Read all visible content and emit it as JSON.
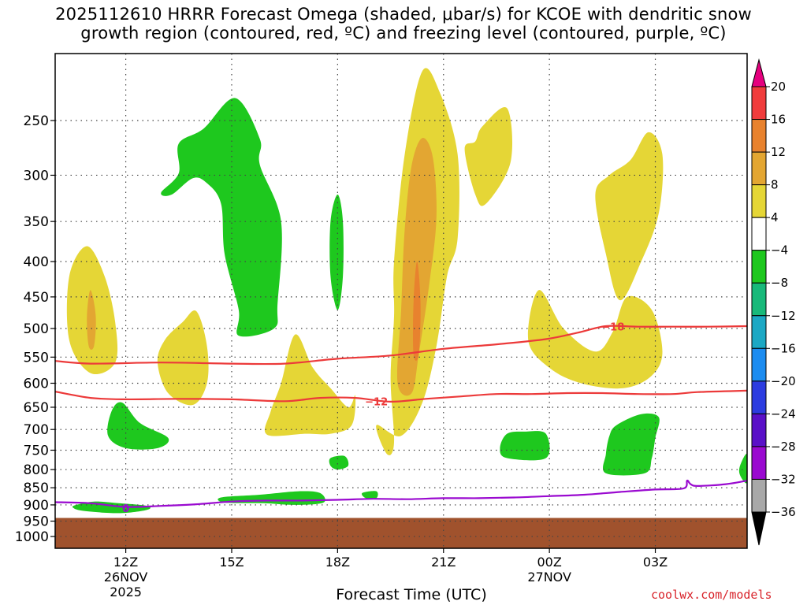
{
  "title": {
    "line1": "2025112610 HRRR Forecast Omega (shaded, μbar/s) for KCOE with dendritic snow",
    "line2": "growth region (contoured, red, ºC) and freezing level (contoured, purple, ºC)"
  },
  "watermark": "coolwx.com/models",
  "chart_data": {
    "type": "time-height cross section (filled contour)",
    "title": "2025112610 HRRR Forecast Omega (shaded, μbar/s) for KCOE with dendritic snow growth region (contoured, red, ºC) and freezing level (contoured, purple, ºC)",
    "xlabel": "Forecast Time (UTC)",
    "ylabel": "",
    "x_range_hours_utc_nov26": [
      10,
      29.6
    ],
    "y_range_hpa": [
      200,
      1040
    ],
    "y_scale": "log (pressure, decreasing upward)",
    "grid": true,
    "x_ticks": [
      {
        "hour": 12,
        "label": "12Z",
        "sub1": "26NOV",
        "sub2": "2025"
      },
      {
        "hour": 15,
        "label": "15Z",
        "sub1": "",
        "sub2": ""
      },
      {
        "hour": 18,
        "label": "18Z",
        "sub1": "",
        "sub2": ""
      },
      {
        "hour": 21,
        "label": "21Z",
        "sub1": "",
        "sub2": ""
      },
      {
        "hour": 24,
        "label": "00Z",
        "sub1": "27NOV",
        "sub2": ""
      },
      {
        "hour": 27,
        "label": "03Z",
        "sub1": "",
        "sub2": ""
      }
    ],
    "y_ticks": [
      250,
      300,
      350,
      400,
      450,
      500,
      550,
      600,
      650,
      700,
      750,
      800,
      850,
      900,
      950,
      1000
    ],
    "colorbar": {
      "levels": [
        "20",
        "16",
        "12",
        "8",
        "4",
        "−4",
        "−8",
        "−12",
        "−16",
        "−20",
        "−24",
        "−28",
        "−32",
        "−36"
      ],
      "colors": [
        "#e5007e",
        "#f03c3c",
        "#e8822e",
        "#e3a632",
        "#e5d636",
        "#ffffff",
        "#1ec81e",
        "#18b97a",
        "#1ca8c4",
        "#1c8cf0",
        "#2c3ce0",
        "#5a10c8",
        "#9a0ad0",
        "#a8a8a8",
        "#000000"
      ]
    },
    "terrain": {
      "top_hpa": 940,
      "color": "#a0522d"
    },
    "omega_regions": [
      {
        "level": "4 to 8",
        "color": "#e5d636",
        "points": [
          [
            10.9,
            380
          ],
          [
            11.4,
            420
          ],
          [
            11.7,
            490
          ],
          [
            11.7,
            560
          ],
          [
            11.0,
            580
          ],
          [
            10.4,
            520
          ],
          [
            10.4,
            420
          ]
        ]
      },
      {
        "level": "4 to 8",
        "color": "#e5d636",
        "points": [
          [
            14.0,
            472
          ],
          [
            14.3,
            530
          ],
          [
            14.3,
            600
          ],
          [
            13.9,
            645
          ],
          [
            13.2,
            620
          ],
          [
            12.9,
            560
          ],
          [
            13.1,
            520
          ],
          [
            13.6,
            490
          ]
        ]
      },
      {
        "level": "4 to 8",
        "color": "#e5d636",
        "points": [
          [
            16.8,
            510
          ],
          [
            17.3,
            570
          ],
          [
            17.8,
            610
          ],
          [
            18.3,
            650
          ],
          [
            18.5,
            625
          ],
          [
            18.4,
            690
          ],
          [
            17.8,
            710
          ],
          [
            17.1,
            710
          ],
          [
            16.0,
            712
          ],
          [
            16.1,
            660
          ],
          [
            16.4,
            600
          ]
        ]
      },
      {
        "level": "4 to 8",
        "color": "#e5d636",
        "points": [
          [
            19.1,
            690
          ],
          [
            19.4,
            760
          ],
          [
            19.6,
            730
          ],
          [
            19.5,
            590
          ],
          [
            19.6,
            480
          ],
          [
            19.6,
            400
          ],
          [
            19.9,
            280
          ],
          [
            20.4,
            212
          ],
          [
            20.9,
            228
          ],
          [
            21.4,
            280
          ],
          [
            21.4,
            370
          ],
          [
            21.1,
            420
          ],
          [
            20.8,
            530
          ],
          [
            20.4,
            640
          ],
          [
            19.8,
            715
          ]
        ]
      },
      {
        "level": "4 to 8",
        "color": "#e5d636",
        "points": [
          [
            21.9,
            268
          ],
          [
            22.1,
            255
          ],
          [
            22.8,
            240
          ],
          [
            22.9,
            287
          ],
          [
            22.2,
            330
          ],
          [
            21.9,
            320
          ],
          [
            21.6,
            275
          ]
        ]
      },
      {
        "level": "4 to 8",
        "color": "#e5d636",
        "points": [
          [
            23.7,
            440
          ],
          [
            24.4,
            500
          ],
          [
            25.3,
            540
          ],
          [
            25.8,
            505
          ],
          [
            26.2,
            450
          ],
          [
            26.9,
            470
          ],
          [
            27.2,
            540
          ],
          [
            26.9,
            585
          ],
          [
            26.1,
            610
          ],
          [
            24.9,
            600
          ],
          [
            24.0,
            570
          ],
          [
            23.4,
            520
          ]
        ]
      },
      {
        "level": "4 to 8",
        "color": "#e5d636",
        "points": [
          [
            26.3,
            285
          ],
          [
            26.8,
            260
          ],
          [
            27.2,
            280
          ],
          [
            27.1,
            340
          ],
          [
            26.6,
            400
          ],
          [
            26.0,
            455
          ],
          [
            25.6,
            390
          ],
          [
            25.3,
            320
          ],
          [
            25.7,
            300
          ]
        ]
      },
      {
        "level": "8 to 12",
        "color": "#e3a632",
        "points": [
          [
            20.4,
            265
          ],
          [
            20.7,
            283
          ],
          [
            20.8,
            345
          ],
          [
            20.6,
            430
          ],
          [
            20.3,
            545
          ],
          [
            20.1,
            620
          ],
          [
            19.7,
            600
          ],
          [
            19.8,
            470
          ],
          [
            19.9,
            360
          ],
          [
            20.1,
            290
          ]
        ]
      },
      {
        "level": "8 to 12",
        "color": "#e3a632",
        "points": [
          [
            11.0,
            440
          ],
          [
            11.15,
            480
          ],
          [
            11.1,
            530
          ],
          [
            10.95,
            530
          ],
          [
            10.9,
            480
          ]
        ]
      },
      {
        "level": "12 to 16",
        "color": "#e8822e",
        "points": [
          [
            20.25,
            400
          ],
          [
            20.35,
            460
          ],
          [
            20.3,
            545
          ],
          [
            20.15,
            545
          ],
          [
            20.15,
            460
          ]
        ]
      },
      {
        "level": "-4 to -8",
        "color": "#1ec81e",
        "points": [
          [
            13.0,
            318
          ],
          [
            13.5,
            298
          ],
          [
            13.5,
            270
          ],
          [
            14.2,
            257
          ],
          [
            15.1,
            232
          ],
          [
            15.8,
            266
          ],
          [
            15.8,
            290
          ],
          [
            16.4,
            350
          ],
          [
            16.3,
            460
          ],
          [
            16.2,
            500
          ],
          [
            15.2,
            512
          ],
          [
            15.2,
            470
          ],
          [
            14.8,
            390
          ],
          [
            14.7,
            330
          ],
          [
            14.3,
            308
          ],
          [
            13.9,
            303
          ],
          [
            13.3,
            320
          ]
        ]
      },
      {
        "level": "-4 to -8",
        "color": "#1ec81e",
        "points": [
          [
            18.0,
            320
          ],
          [
            18.15,
            350
          ],
          [
            18.15,
            420
          ],
          [
            18.0,
            470
          ],
          [
            17.8,
            420
          ],
          [
            17.8,
            350
          ]
        ]
      },
      {
        "level": "-4 to -8",
        "color": "#1ec81e",
        "points": [
          [
            11.6,
            658
          ],
          [
            11.9,
            640
          ],
          [
            12.4,
            685
          ],
          [
            13.2,
            720
          ],
          [
            12.9,
            745
          ],
          [
            12.0,
            745
          ],
          [
            11.5,
            715
          ]
        ]
      },
      {
        "level": "-4 to -8",
        "color": "#1ec81e",
        "points": [
          [
            22.8,
            710
          ],
          [
            23.3,
            705
          ],
          [
            23.9,
            710
          ],
          [
            23.9,
            770
          ],
          [
            22.8,
            770
          ],
          [
            22.6,
            745
          ]
        ]
      },
      {
        "level": "-4 to -8",
        "color": "#1ec81e",
        "points": [
          [
            25.9,
            690
          ],
          [
            26.6,
            665
          ],
          [
            27.1,
            672
          ],
          [
            27.0,
            720
          ],
          [
            26.9,
            770
          ],
          [
            26.7,
            810
          ],
          [
            25.6,
            810
          ],
          [
            25.6,
            760
          ],
          [
            25.7,
            715
          ]
        ]
      },
      {
        "level": "-4 to -8",
        "color": "#1ec81e",
        "points": [
          [
            17.8,
            770
          ],
          [
            18.2,
            765
          ],
          [
            18.3,
            790
          ],
          [
            18.0,
            800
          ],
          [
            17.8,
            790
          ]
        ]
      },
      {
        "level": "-4 to -8",
        "color": "#1ec81e",
        "points": [
          [
            18.7,
            865
          ],
          [
            19.1,
            860
          ],
          [
            19.1,
            880
          ],
          [
            18.8,
            880
          ]
        ]
      },
      {
        "level": "-4 to -8",
        "color": "#1ec81e",
        "points": [
          [
            10.6,
            900
          ],
          [
            11.1,
            890
          ],
          [
            11.8,
            895
          ],
          [
            12.6,
            903
          ],
          [
            12.6,
            915
          ],
          [
            11.8,
            925
          ],
          [
            10.8,
            918
          ],
          [
            10.5,
            908
          ]
        ]
      },
      {
        "level": "-4 to -8",
        "color": "#1ec81e",
        "points": [
          [
            14.7,
            878
          ],
          [
            15.8,
            870
          ],
          [
            16.9,
            860
          ],
          [
            17.5,
            865
          ],
          [
            17.6,
            893
          ],
          [
            16.8,
            900
          ],
          [
            15.9,
            895
          ],
          [
            14.8,
            893
          ]
        ]
      },
      {
        "level": "-4 to -8",
        "color": "#1ec81e",
        "points": [
          [
            29.6,
            760
          ],
          [
            29.4,
            790
          ],
          [
            29.4,
            815
          ],
          [
            29.6,
            835
          ]
        ]
      }
    ],
    "contours": [
      {
        "name": "dendritic -18 C",
        "color": "#ec3a3a",
        "label": "−18",
        "label_at": [
          25.8,
          497
        ],
        "points": [
          [
            10.0,
            557
          ],
          [
            11.0,
            562
          ],
          [
            13.0,
            560
          ],
          [
            15.0,
            562
          ],
          [
            16.5,
            562
          ],
          [
            18.0,
            553
          ],
          [
            19.5,
            547
          ],
          [
            21.0,
            535
          ],
          [
            22.5,
            527
          ],
          [
            23.9,
            518
          ],
          [
            24.8,
            507
          ],
          [
            25.6,
            496
          ],
          [
            26.5,
            497
          ],
          [
            27.5,
            497
          ],
          [
            28.5,
            497
          ],
          [
            29.6,
            496
          ]
        ]
      },
      {
        "name": "dendritic -12 C",
        "color": "#ec3a3a",
        "label": "−12",
        "label_at": [
          19.1,
          637
        ],
        "points": [
          [
            10.0,
            617
          ],
          [
            11.0,
            630
          ],
          [
            12.0,
            633
          ],
          [
            13.5,
            632
          ],
          [
            15.0,
            633
          ],
          [
            16.5,
            637
          ],
          [
            17.5,
            630
          ],
          [
            18.5,
            630
          ],
          [
            19.5,
            638
          ],
          [
            20.5,
            632
          ],
          [
            21.5,
            627
          ],
          [
            22.5,
            622
          ],
          [
            23.5,
            622
          ],
          [
            24.5,
            620
          ],
          [
            25.5,
            620
          ],
          [
            26.5,
            622
          ],
          [
            27.5,
            622
          ],
          [
            28.2,
            618
          ],
          [
            29.6,
            615
          ]
        ]
      },
      {
        "name": "freezing level 0 C",
        "color": "#9a0ad0",
        "label": "0",
        "label_at": [
          12.0,
          910
        ],
        "points": [
          [
            10.0,
            892
          ],
          [
            11.0,
            895
          ],
          [
            12.0,
            906
          ],
          [
            13.0,
            903
          ],
          [
            14.0,
            898
          ],
          [
            15.0,
            890
          ],
          [
            16.0,
            887
          ],
          [
            17.0,
            887
          ],
          [
            18.0,
            885
          ],
          [
            19.0,
            882
          ],
          [
            20.0,
            883
          ],
          [
            21.0,
            880
          ],
          [
            22.0,
            880
          ],
          [
            23.0,
            878
          ],
          [
            24.0,
            874
          ],
          [
            25.0,
            870
          ],
          [
            26.0,
            862
          ],
          [
            27.0,
            855
          ],
          [
            27.8,
            852
          ],
          [
            27.9,
            830
          ],
          [
            28.0,
            840
          ],
          [
            28.2,
            845
          ],
          [
            29.0,
            840
          ],
          [
            29.6,
            830
          ]
        ]
      }
    ]
  }
}
